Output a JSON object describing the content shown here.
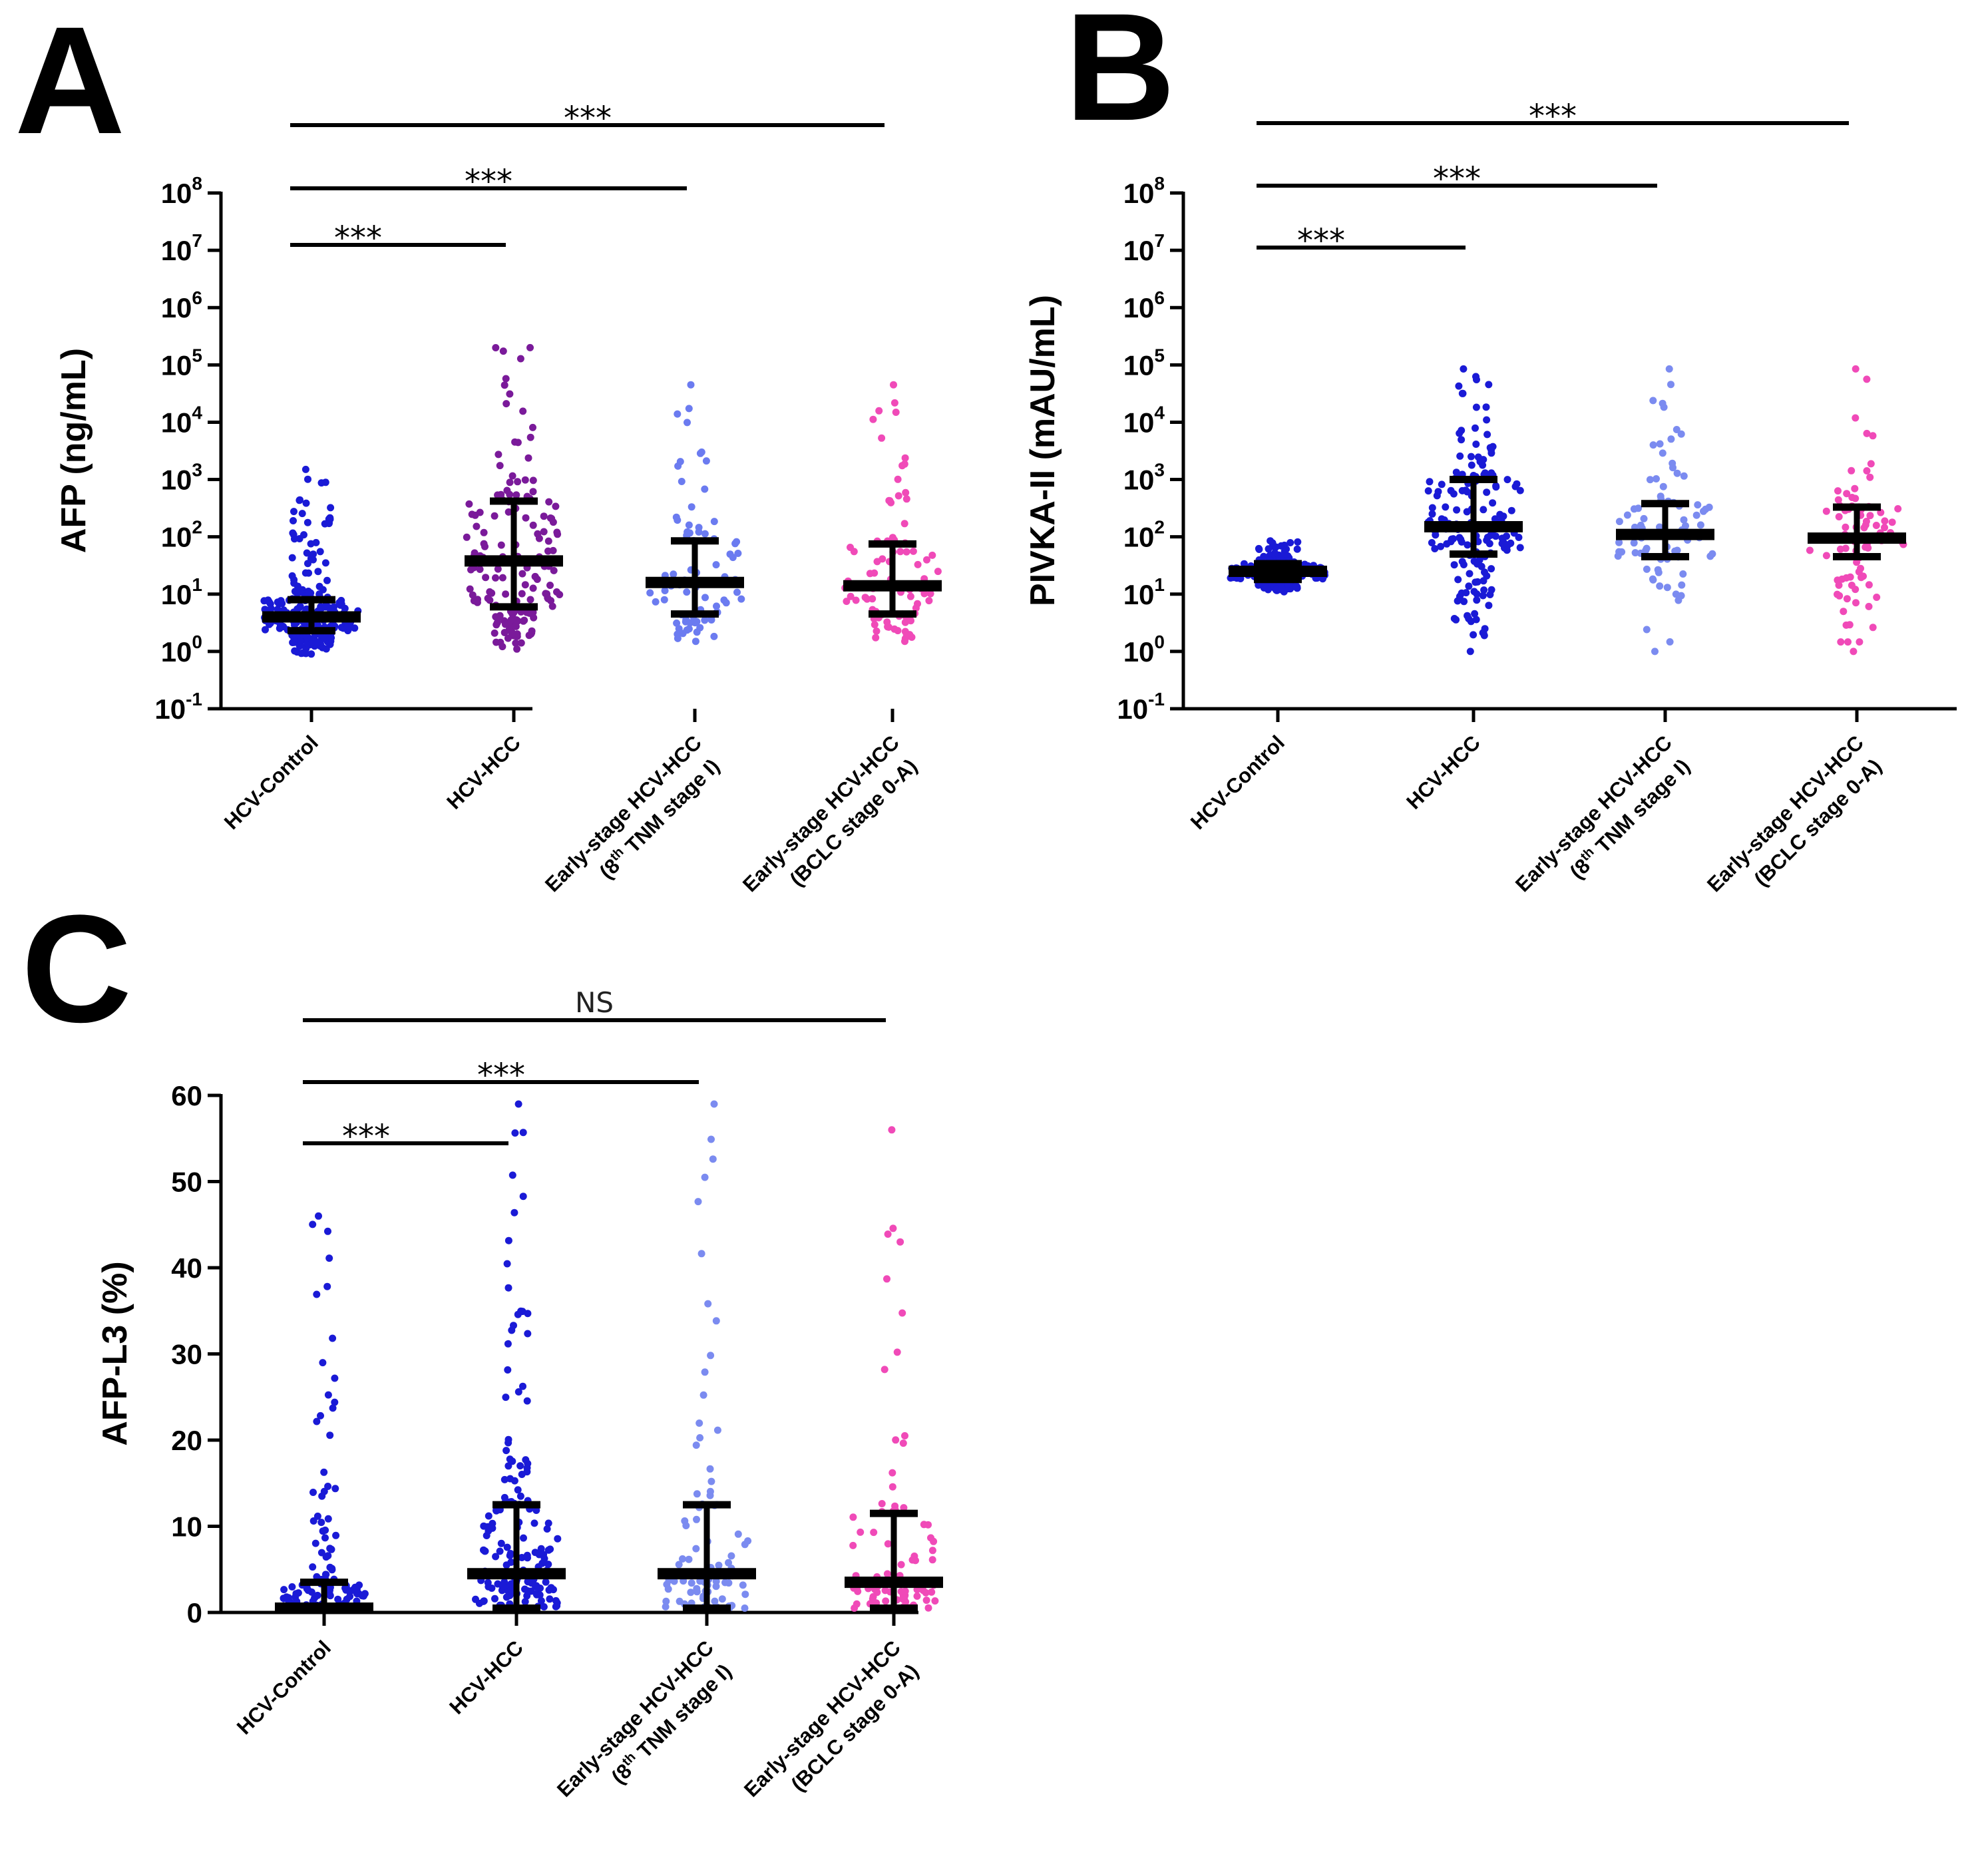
{
  "chart_data": [
    {
      "panel": "A",
      "type": "scatter",
      "ylabel": "AFP (ng/mL)",
      "yscale": "log",
      "ylim_exp": [
        -1,
        8
      ],
      "y_ticks": [
        {
          "base": "10",
          "exp": "-1"
        },
        {
          "base": "10",
          "exp": "0"
        },
        {
          "base": "10",
          "exp": "1"
        },
        {
          "base": "10",
          "exp": "2"
        },
        {
          "base": "10",
          "exp": "3"
        },
        {
          "base": "10",
          "exp": "4"
        },
        {
          "base": "10",
          "exp": "5"
        },
        {
          "base": "10",
          "exp": "6"
        },
        {
          "base": "10",
          "exp": "7"
        },
        {
          "base": "10",
          "exp": "8"
        }
      ],
      "categories": [
        {
          "line1": "HCV-Control"
        },
        {
          "line1": "HCV-HCC"
        },
        {
          "line1": "Early-stage HCV-HCC",
          "line2_pre": "(8",
          "line2_sup": "th",
          "line2_post": " TNM stage I)"
        },
        {
          "line1": "Early-stage HCV-HCC",
          "line2_pre": "(BCLC stage 0-A)",
          "line2_sup": "",
          "line2_post": ""
        }
      ],
      "series": [
        {
          "name": "HCV-Control",
          "color": "#1a1ad6",
          "n": 240,
          "median": 4,
          "q1": 2.3,
          "q3": 8,
          "min": 0.9,
          "max": 1500
        },
        {
          "name": "HCV-HCC",
          "color": "#7a1a9a",
          "n": 170,
          "median": 38,
          "q1": 6,
          "q3": 420,
          "min": 1.1,
          "max": 200000
        },
        {
          "name": "Early-stage HCV-HCC (8th TNM stage I)",
          "color": "#6b7bf0",
          "n": 80,
          "median": 16,
          "q1": 4.5,
          "q3": 85,
          "min": 1.5,
          "max": 45000
        },
        {
          "name": "Early-stage HCV-HCC (BCLC stage 0-A)",
          "color": "#f04ab8",
          "n": 85,
          "median": 14,
          "q1": 4.5,
          "q3": 75,
          "min": 1.5,
          "max": 45000
        }
      ],
      "significance": [
        {
          "from": 0,
          "to": 1,
          "label": "***"
        },
        {
          "from": 0,
          "to": 2,
          "label": "***"
        },
        {
          "from": 0,
          "to": 3,
          "label": "***"
        }
      ]
    },
    {
      "panel": "B",
      "type": "scatter",
      "ylabel": "PIVKA-II (mAU/mL)",
      "yscale": "log",
      "ylim_exp": [
        -1,
        8
      ],
      "y_ticks": [
        {
          "base": "10",
          "exp": "-1"
        },
        {
          "base": "10",
          "exp": "0"
        },
        {
          "base": "10",
          "exp": "1"
        },
        {
          "base": "10",
          "exp": "2"
        },
        {
          "base": "10",
          "exp": "3"
        },
        {
          "base": "10",
          "exp": "4"
        },
        {
          "base": "10",
          "exp": "5"
        },
        {
          "base": "10",
          "exp": "6"
        },
        {
          "base": "10",
          "exp": "7"
        },
        {
          "base": "10",
          "exp": "8"
        }
      ],
      "categories": [
        {
          "line1": "HCV-Control"
        },
        {
          "line1": "HCV-HCC"
        },
        {
          "line1": "Early-stage HCV-HCC",
          "line2_pre": "(8",
          "line2_sup": "th",
          "line2_post": " TNM stage I)"
        },
        {
          "line1": "Early-stage HCV-HCC",
          "line2_pre": "(BCLC stage 0-A)",
          "line2_sup": "",
          "line2_post": ""
        }
      ],
      "series": [
        {
          "name": "HCV-Control",
          "color": "#1a1ad6",
          "n": 240,
          "median": 25,
          "q1": 18,
          "q3": 34,
          "min": 11,
          "max": 85
        },
        {
          "name": "HCV-HCC",
          "color": "#1a1ad6",
          "n": 170,
          "median": 150,
          "q1": 50,
          "q3": 1000,
          "min": 1,
          "max": 85000
        },
        {
          "name": "Early-stage HCV-HCC (8th TNM stage I)",
          "color": "#7b8bf0",
          "n": 80,
          "median": 110,
          "q1": 45,
          "q3": 380,
          "min": 1,
          "max": 85000
        },
        {
          "name": "Early-stage HCV-HCC (BCLC stage 0-A)",
          "color": "#f04ab8",
          "n": 85,
          "median": 95,
          "q1": 45,
          "q3": 330,
          "min": 1,
          "max": 85000
        }
      ],
      "significance": [
        {
          "from": 0,
          "to": 1,
          "label": "***"
        },
        {
          "from": 0,
          "to": 2,
          "label": "***"
        },
        {
          "from": 0,
          "to": 3,
          "label": "***"
        }
      ]
    },
    {
      "panel": "C",
      "type": "scatter",
      "ylabel": "AFP-L3 (%)",
      "yscale": "linear",
      "ylim": [
        0,
        60
      ],
      "y_ticks": [
        {
          "base": "0"
        },
        {
          "base": "10"
        },
        {
          "base": "20"
        },
        {
          "base": "30"
        },
        {
          "base": "40"
        },
        {
          "base": "50"
        },
        {
          "base": "60"
        }
      ],
      "categories": [
        {
          "line1": "HCV-Control"
        },
        {
          "line1": "HCV-HCC"
        },
        {
          "line1": "Early-stage HCV-HCC",
          "line2_pre": "(8",
          "line2_sup": "th",
          "line2_post": " TNM stage I)"
        },
        {
          "line1": "Early-stage HCV-HCC",
          "line2_pre": "(BCLC stage 0-A)",
          "line2_sup": "",
          "line2_post": ""
        }
      ],
      "series": [
        {
          "name": "HCV-Control",
          "color": "#1a1ad6",
          "n": 240,
          "median": 0.5,
          "q1": 0.5,
          "q3": 3.5,
          "min": 0.5,
          "max": 46
        },
        {
          "name": "HCV-HCC",
          "color": "#1a1ad6",
          "n": 170,
          "median": 4.5,
          "q1": 0.5,
          "q3": 12.5,
          "min": 0.5,
          "max": 59
        },
        {
          "name": "Early-stage HCV-HCC (8th TNM stage I)",
          "color": "#7b8bf0",
          "n": 80,
          "median": 4.5,
          "q1": 0.5,
          "q3": 12.5,
          "min": 0.5,
          "max": 59
        },
        {
          "name": "Early-stage HCV-HCC (BCLC stage 0-A)",
          "color": "#f04ab8",
          "n": 85,
          "median": 3.5,
          "q1": 0.5,
          "q3": 11.5,
          "min": 0.5,
          "max": 56
        }
      ],
      "significance": [
        {
          "from": 0,
          "to": 1,
          "label": "***"
        },
        {
          "from": 0,
          "to": 2,
          "label": "***"
        },
        {
          "from": 0,
          "to": 3,
          "label": "NS"
        }
      ]
    }
  ]
}
